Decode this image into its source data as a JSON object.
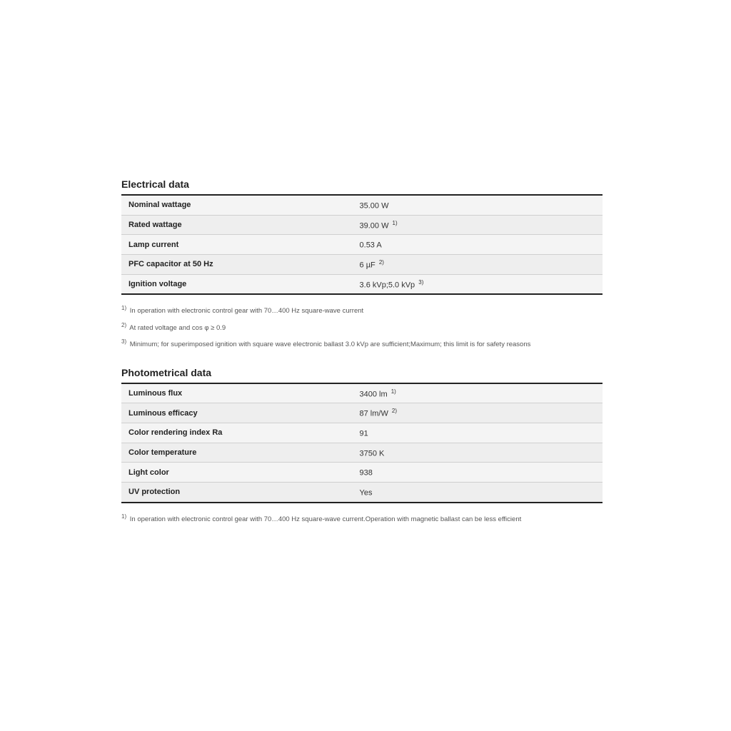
{
  "sections": [
    {
      "title": "Electrical data",
      "rows": [
        {
          "label": "Nominal wattage",
          "value": "35.00 W",
          "sup": ""
        },
        {
          "label": "Rated wattage",
          "value": "39.00 W",
          "sup": "1)"
        },
        {
          "label": "Lamp current",
          "value": "0.53 A",
          "sup": ""
        },
        {
          "label": "PFC capacitor at 50 Hz",
          "value": "6 µF",
          "sup": "2)"
        },
        {
          "label": "Ignition voltage",
          "value": "3.6 kVp;5.0 kVp",
          "sup": "3)"
        }
      ],
      "footnotes": [
        {
          "sup": "1)",
          "text": "In operation with electronic control gear with 70…400 Hz square-wave current"
        },
        {
          "sup": "2)",
          "text": "At rated voltage and cos φ ≥ 0.9"
        },
        {
          "sup": "3)",
          "text": "Minimum; for superimposed ignition with square wave electronic ballast 3.0 kVp are sufficient;Maximum; this limit is for safety reasons"
        }
      ]
    },
    {
      "title": "Photometrical data",
      "rows": [
        {
          "label": "Luminous flux",
          "value": "3400 lm",
          "sup": "1)"
        },
        {
          "label": "Luminous efficacy",
          "value": "87 lm/W",
          "sup": "2)"
        },
        {
          "label": "Color rendering index Ra",
          "value": "91",
          "sup": ""
        },
        {
          "label": "Color temperature",
          "value": "3750 K",
          "sup": ""
        },
        {
          "label": "Light color",
          "value": "938",
          "sup": ""
        },
        {
          "label": "UV protection",
          "value": "Yes",
          "sup": ""
        }
      ],
      "footnotes": [
        {
          "sup": "1)",
          "text": "In operation with electronic control gear with 70…400 Hz square-wave current.Operation with magnetic ballast can be less efficient"
        }
      ]
    }
  ]
}
